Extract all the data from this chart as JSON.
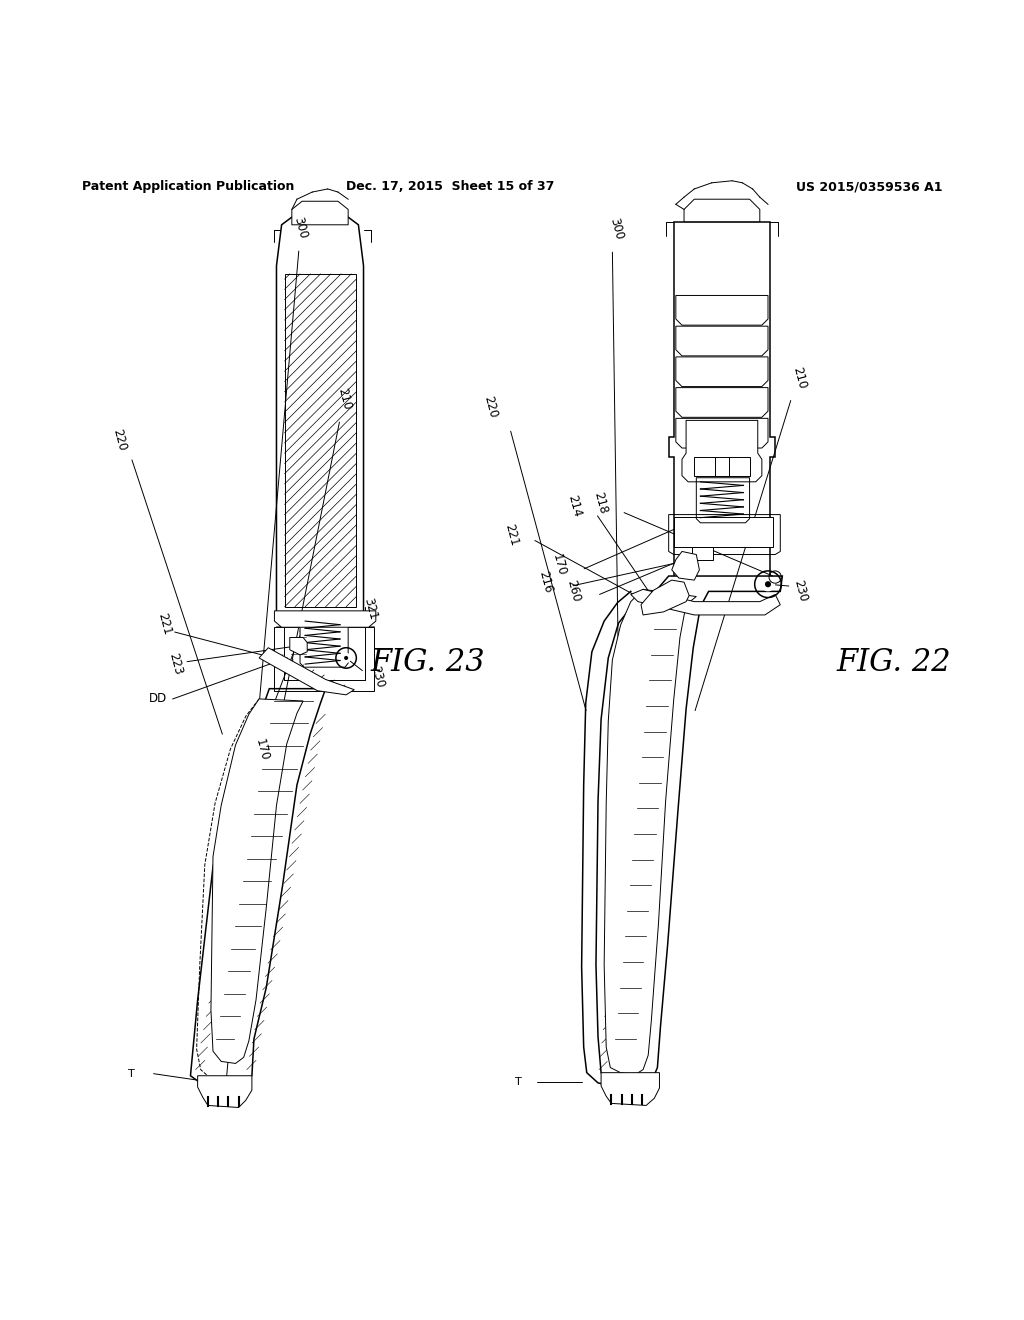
{
  "background_color": "#ffffff",
  "header_left": "Patent Application Publication",
  "header_center": "Dec. 17, 2015  Sheet 15 of 37",
  "header_right": "US 2015/0359536 A1",
  "fig22_label": "FIG. 22",
  "fig23_label": "FIG. 23"
}
